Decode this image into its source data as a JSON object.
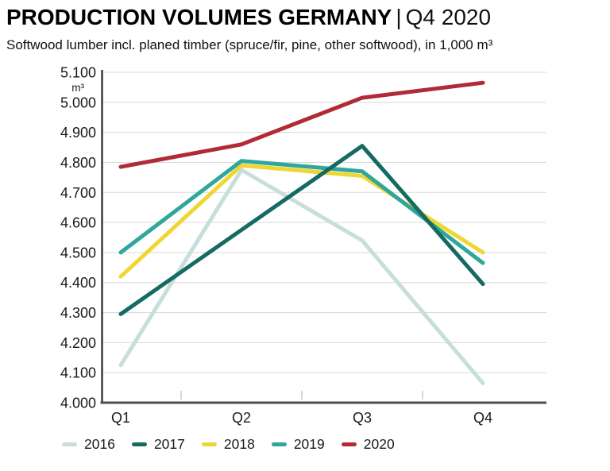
{
  "header": {
    "title_main": "PRODUCTION VOLUMES GERMANY",
    "title_divider": "|",
    "title_period": "Q4 2020",
    "subtitle": "Softwood lumber incl. planed timber (spruce/fir, pine, other softwood), in 1,000 m³"
  },
  "chart_data": {
    "type": "line",
    "title": "PRODUCTION VOLUMES GERMANY | Q4 2020",
    "subtitle": "Softwood lumber incl. planed timber (spruce/fir, pine, other softwood), in 1,000 m³",
    "categories": [
      "Q1",
      "Q2",
      "Q3",
      "Q4"
    ],
    "series": [
      {
        "name": "2016",
        "color": "#c7dedb",
        "values": [
          4125,
          4775,
          4540,
          4065
        ]
      },
      {
        "name": "2017",
        "color": "#156a61",
        "values": [
          4295,
          4575,
          4855,
          4395
        ]
      },
      {
        "name": "2018",
        "color": "#f0d633",
        "values": [
          4420,
          4790,
          4755,
          4500
        ]
      },
      {
        "name": "2019",
        "color": "#2fa79b",
        "values": [
          4500,
          4805,
          4770,
          4465
        ]
      },
      {
        "name": "2020",
        "color": "#b02b36",
        "values": [
          4785,
          4860,
          5015,
          5065
        ]
      }
    ],
    "yaxis": {
      "min": 4000,
      "max": 5100,
      "step": 100,
      "tick_labels": [
        "4.000",
        "4.100",
        "4.200",
        "4.300",
        "4.400",
        "4.500",
        "4.600",
        "4.700",
        "4.800",
        "4.900",
        "5.000",
        "5.100"
      ],
      "unit": "m³"
    },
    "xlabel": "",
    "ylabel": "m³",
    "ylim": [
      4000,
      5100
    ],
    "grid": "horizontal",
    "legend_position": "bottom"
  }
}
